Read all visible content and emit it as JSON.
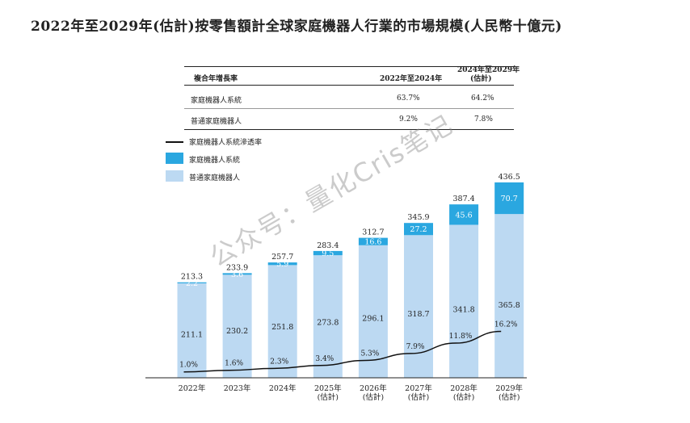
{
  "title": "2022年至2029年(估計)按零售額計全球家庭機器人行業的市場規模(人民幣十億元)",
  "cagr_table": {
    "header_label": "複合年增長率",
    "col1": "2022年至2024年",
    "col2_line1": "2024年至2029年",
    "col2_line2": "(估計)",
    "rows": [
      {
        "label": "家庭機器人系統",
        "v1": "63.7%",
        "v2": "64.2%"
      },
      {
        "label": "普通家庭機器人",
        "v1": "9.2%",
        "v2": "7.8%"
      }
    ]
  },
  "legend": {
    "line_label": "家庭機器人系統滲透率",
    "series1_label": "家庭機器人系統",
    "series2_label": "普通家庭機器人"
  },
  "colors": {
    "systems": "#2aa7e0",
    "ordinary": "#bcd9f2",
    "line": "#111111",
    "text": "#222222"
  },
  "watermark": "公众号：量化Cris笔记",
  "chart_data": {
    "type": "bar",
    "stacked": true,
    "categories": [
      [
        "2022年"
      ],
      [
        "2023年"
      ],
      [
        "2024年"
      ],
      [
        "2025年",
        "(估計)"
      ],
      [
        "2026年",
        "(估計)"
      ],
      [
        "2027年",
        "(估計)"
      ],
      [
        "2028年",
        "(估計)"
      ],
      [
        "2029年",
        "(估計)"
      ]
    ],
    "totals": [
      213.3,
      233.9,
      257.7,
      283.4,
      312.7,
      345.9,
      387.4,
      436.5
    ],
    "series": [
      {
        "name": "普通家庭機器人",
        "values": [
          211.1,
          230.2,
          251.8,
          273.8,
          296.1,
          318.7,
          341.8,
          365.8
        ]
      },
      {
        "name": "家庭機器人系統",
        "values": [
          2.2,
          3.6,
          5.9,
          9.5,
          16.6,
          27.2,
          45.6,
          70.7
        ]
      }
    ],
    "line": {
      "name": "家庭機器人系統滲透率",
      "values": [
        1.0,
        1.6,
        2.3,
        3.4,
        5.3,
        7.9,
        11.8,
        16.2
      ],
      "labels": [
        "1.0%",
        "1.6%",
        "2.3%",
        "3.4%",
        "5.3%",
        "7.9%",
        "11.8%",
        "16.2%"
      ]
    }
  }
}
